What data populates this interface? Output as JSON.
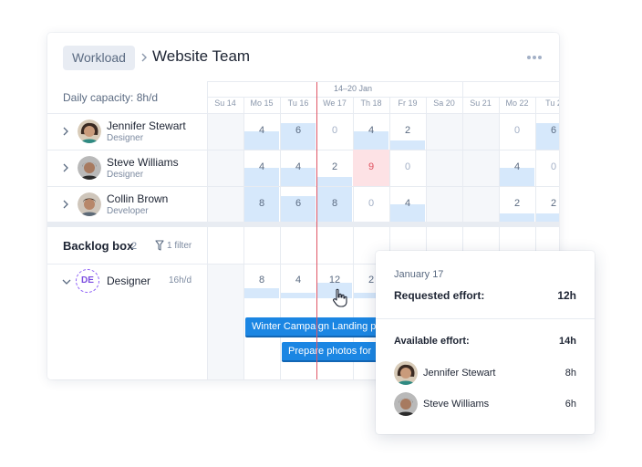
{
  "header": {
    "breadcrumb_root": "Workload",
    "title": "Website Team"
  },
  "capacity_label": "Daily capacity: 8h/d",
  "calendar": {
    "week_label": "14–20 Jan",
    "days": [
      "Su 14",
      "Mo 15",
      "Tu 16",
      "We 17",
      "Th 18",
      "Fr 19",
      "Sa 20",
      "Su 21",
      "Mo 22",
      "Tu 2"
    ]
  },
  "people": [
    {
      "name": "Jennifer Stewart",
      "role": "Designer",
      "cells": [
        {
          "col": 1,
          "value": "4",
          "fill": 0.5
        },
        {
          "col": 2,
          "value": "6",
          "fill": 0.75
        },
        {
          "col": 3,
          "value": "0",
          "fill": 0
        },
        {
          "col": 4,
          "value": "4",
          "fill": 0.5
        },
        {
          "col": 5,
          "value": "2",
          "fill": 0.25
        },
        {
          "col": 8,
          "value": "0",
          "fill": 0
        },
        {
          "col": 9,
          "value": "6",
          "fill": 0.75
        }
      ]
    },
    {
      "name": "Steve Williams",
      "role": "Designer",
      "cells": [
        {
          "col": 1,
          "value": "4",
          "fill": 0.5
        },
        {
          "col": 2,
          "value": "4",
          "fill": 0.5
        },
        {
          "col": 3,
          "value": "2",
          "fill": 0.25
        },
        {
          "col": 4,
          "value": "9",
          "fill": 1,
          "over": true
        },
        {
          "col": 5,
          "value": "0",
          "fill": 0
        },
        {
          "col": 8,
          "value": "4",
          "fill": 0.5
        },
        {
          "col": 9,
          "value": "0",
          "fill": 0
        }
      ]
    },
    {
      "name": "Collin Brown",
      "role": "Developer",
      "cells": [
        {
          "col": 1,
          "value": "8",
          "fill": 1
        },
        {
          "col": 2,
          "value": "6",
          "fill": 0.75
        },
        {
          "col": 3,
          "value": "8",
          "fill": 1
        },
        {
          "col": 4,
          "value": "0",
          "fill": 0
        },
        {
          "col": 5,
          "value": "4",
          "fill": 0.5
        },
        {
          "col": 8,
          "value": "2",
          "fill": 0.25
        },
        {
          "col": 9,
          "value": "2",
          "fill": 0.25
        }
      ]
    }
  ],
  "backlog": {
    "title": "Backlog box",
    "count": "2",
    "filter_label": "1 filter",
    "role": {
      "badge": "DE",
      "name": "Designer",
      "capacity": "16h/d",
      "cells": [
        {
          "col": 1,
          "value": "8",
          "fill": 0.5
        },
        {
          "col": 2,
          "value": "4",
          "fill": 0.25
        },
        {
          "col": 3,
          "value": "12",
          "fill": 0.75
        },
        {
          "col": 4,
          "value": "2",
          "fill": 0.125
        }
      ]
    },
    "tasks": [
      {
        "label": "Winter Campaign Landing p"
      },
      {
        "label": "Prepare photos for"
      }
    ]
  },
  "popover": {
    "date": "January 17",
    "requested_label": "Requested effort:",
    "requested_value": "12h",
    "available_label": "Available effort:",
    "available_value": "14h",
    "people": [
      {
        "name": "Jennifer Stewart",
        "hours": "8h"
      },
      {
        "name": "Steve Williams",
        "hours": "6h"
      }
    ]
  },
  "colors": {
    "accent": "#1b86e3",
    "bar_fill": "#d6e8fb",
    "overload": "#fde2e5",
    "today_line": "#e05565",
    "role_badge": "#8b5cf6"
  },
  "icons": {
    "breadcrumb_separator": "chevron-right-icon",
    "more": "more-horizontal-icon",
    "row_expand": "chevron-right-icon",
    "row_collapse": "chevron-down-icon",
    "filter": "filter-icon",
    "cursor": "hand-pointer-icon"
  }
}
